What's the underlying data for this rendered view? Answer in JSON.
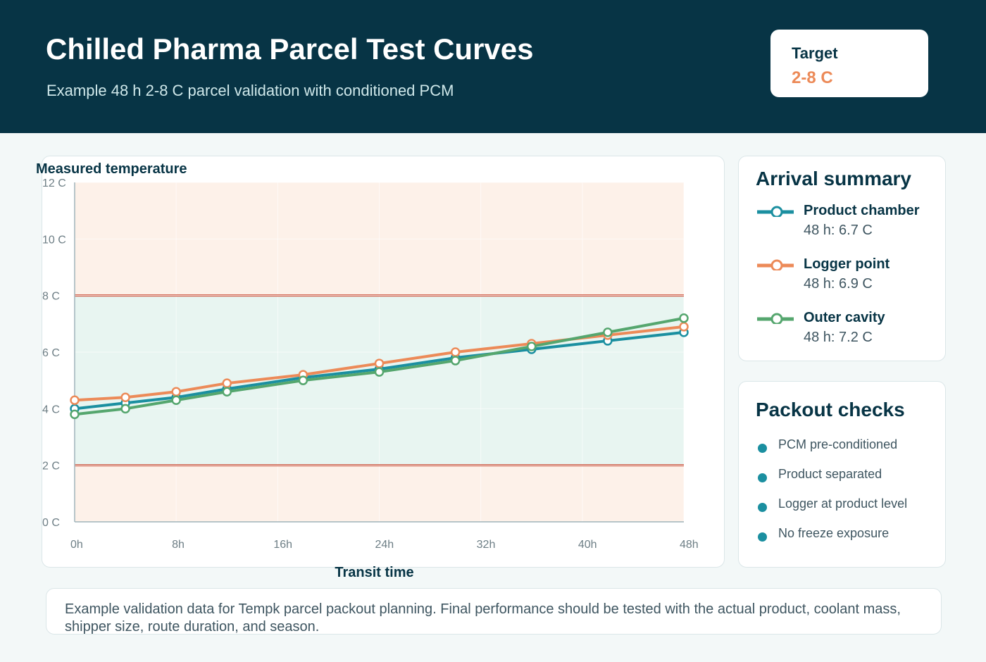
{
  "header": {
    "title": "Chilled Pharma Parcel Test Curves",
    "subtitle": "Example 48 h 2-8 C parcel validation with conditioned PCM",
    "target_label": "Target",
    "target_value": "2-8 C"
  },
  "colors": {
    "header_bg": "#073445",
    "accent_orange": "#ec8a58",
    "product_chamber": "#1b8fa0",
    "logger_point": "#ec8a58",
    "outer_cavity": "#55a66e",
    "in_range_band": "#e8f5f1",
    "out_of_range_band": "#fdf1e9",
    "limit_line": "#c9503a"
  },
  "chart_data": {
    "type": "line",
    "ylabel": "Measured temperature",
    "xlabel": "Transit time",
    "x": [
      0,
      4,
      8,
      12,
      18,
      24,
      30,
      36,
      42,
      48
    ],
    "x_ticks": [
      0,
      8,
      16,
      24,
      32,
      40,
      48
    ],
    "x_tick_labels": [
      "0h",
      "8h",
      "16h",
      "24h",
      "32h",
      "40h",
      "48h"
    ],
    "y_ticks": [
      0,
      2,
      4,
      6,
      8,
      10,
      12
    ],
    "y_tick_labels": [
      "0 C",
      "2 C",
      "4 C",
      "6 C",
      "8 C",
      "10 C",
      "12 C"
    ],
    "xlim": [
      0,
      48
    ],
    "ylim": [
      0,
      12
    ],
    "target_band": [
      2,
      8
    ],
    "series": [
      {
        "name": "Product chamber",
        "values": [
          4.0,
          4.2,
          4.4,
          4.7,
          5.1,
          5.4,
          5.8,
          6.1,
          6.4,
          6.7
        ]
      },
      {
        "name": "Logger point",
        "values": [
          4.3,
          4.4,
          4.6,
          4.9,
          5.2,
          5.6,
          6.0,
          6.3,
          6.6,
          6.9
        ]
      },
      {
        "name": "Outer cavity",
        "values": [
          3.8,
          4.0,
          4.3,
          4.6,
          5.0,
          5.3,
          5.7,
          6.2,
          6.7,
          7.2
        ]
      }
    ],
    "grid": true,
    "legend": "side panel"
  },
  "summary": {
    "heading": "Arrival summary",
    "items": [
      {
        "name": "Product chamber",
        "value": "48 h: 6.7 C",
        "color": "#1b8fa0"
      },
      {
        "name": "Logger point",
        "value": "48 h: 6.9 C",
        "color": "#ec8a58"
      },
      {
        "name": "Outer cavity",
        "value": "48 h: 7.2 C",
        "color": "#55a66e"
      }
    ]
  },
  "checks": {
    "heading": "Packout checks",
    "items": [
      "PCM pre-conditioned",
      "Product separated",
      "Logger at product level",
      "No freeze exposure"
    ]
  },
  "footer": {
    "note": "Example validation data for Tempk parcel packout planning. Final performance should be tested with the actual product, coolant mass, shipper size, route duration, and season."
  }
}
